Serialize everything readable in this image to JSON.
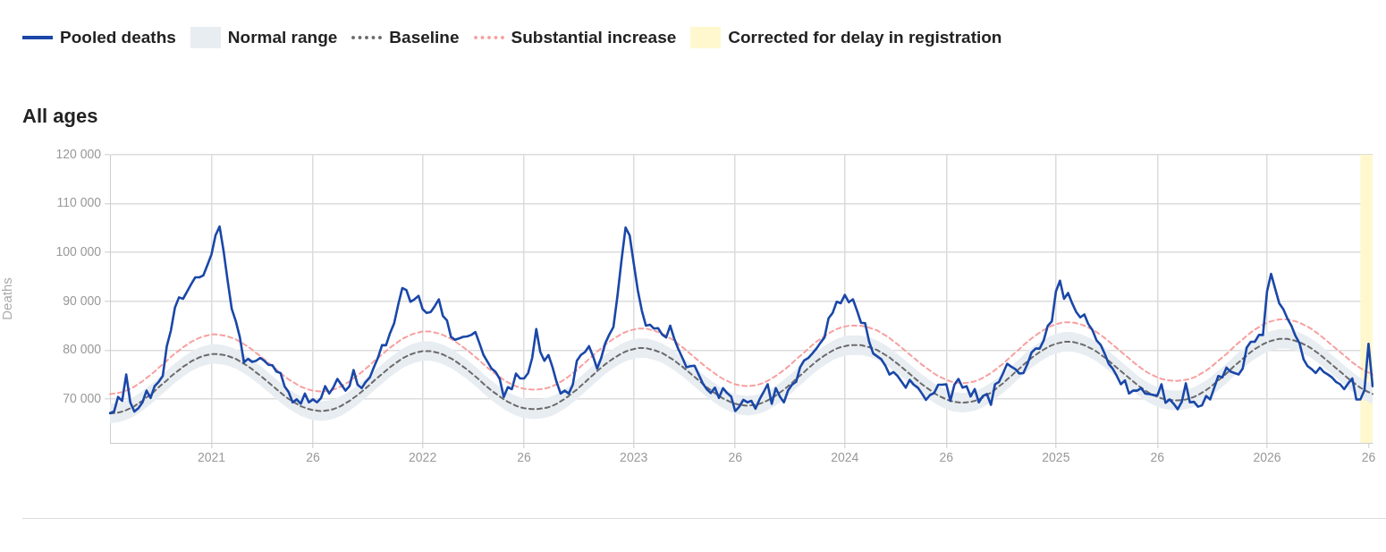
{
  "chart_data": {
    "type": "line",
    "title": "All ages",
    "ylabel": "Deaths",
    "legend": "top left",
    "grid": true,
    "categories": [
      null,
      null,
      null,
      null,
      null,
      null,
      null,
      null,
      null,
      null,
      null,
      null,
      null,
      null,
      null,
      null,
      null,
      null,
      null,
      null,
      null,
      null,
      null,
      null,
      null,
      "2021",
      null,
      null,
      null,
      null,
      null,
      null,
      null,
      null,
      null,
      null,
      null,
      null,
      null,
      null,
      null,
      null,
      null,
      null,
      null,
      null,
      null,
      null,
      null,
      null,
      "26",
      null,
      null,
      null,
      null,
      null,
      null,
      null,
      null,
      null,
      null,
      null,
      null,
      null,
      null,
      null,
      null,
      null,
      null,
      null,
      null,
      null,
      null,
      null,
      null,
      null,
      null,
      "2022",
      null,
      null,
      null,
      null,
      null,
      null,
      null,
      null,
      null,
      null,
      null,
      null,
      null,
      null,
      null,
      null,
      null,
      null,
      null,
      null,
      null,
      null,
      null,
      null,
      "26",
      null,
      null,
      null,
      null,
      null,
      null,
      null,
      null,
      null,
      null,
      null,
      null,
      null,
      null,
      null,
      null,
      null,
      null,
      null,
      null,
      null,
      null,
      null,
      null,
      null,
      null,
      "2023",
      null,
      null,
      null,
      null,
      null,
      null,
      null,
      null,
      null,
      null,
      null,
      null,
      null,
      null,
      null,
      null,
      null,
      null,
      null,
      null,
      null,
      null,
      null,
      null,
      "26",
      null,
      null,
      null,
      null,
      null,
      null,
      null,
      null,
      null,
      null,
      null,
      null,
      null,
      null,
      null,
      null,
      null,
      null,
      null,
      null,
      null,
      null,
      null,
      null,
      null,
      null,
      "2024",
      null,
      null,
      null,
      null,
      null,
      null,
      null,
      null,
      null,
      null,
      null,
      null,
      null,
      null,
      null,
      null,
      null,
      null,
      null,
      null,
      null,
      null,
      null,
      null,
      "26",
      null,
      null,
      null,
      null,
      null,
      null,
      null,
      null,
      null,
      null,
      null,
      null,
      null,
      null,
      null,
      null,
      null,
      null,
      null,
      null,
      null,
      null,
      null,
      null,
      null,
      null,
      "2025",
      null,
      null,
      null,
      null,
      null,
      null,
      null,
      null,
      null,
      null,
      null,
      null,
      null,
      null,
      null,
      null,
      null,
      null,
      null,
      null,
      null,
      null,
      null,
      null,
      "26",
      null,
      null,
      null,
      null,
      null,
      null,
      null,
      null,
      null,
      null,
      null,
      null,
      null,
      null,
      null,
      null,
      null,
      null,
      null,
      null,
      null,
      null,
      null,
      null,
      null,
      null,
      "2026",
      null,
      null,
      null,
      null,
      null,
      null,
      null,
      null,
      null,
      null,
      null,
      null,
      null,
      null,
      null,
      null,
      null,
      null,
      null,
      null,
      null,
      null,
      null,
      null,
      "26",
      null
    ],
    "ylim": [
      61000,
      120000
    ],
    "yticks": [
      {
        "value": 70000,
        "label": "70 000"
      },
      {
        "value": 80000,
        "label": "80 000"
      },
      {
        "value": 90000,
        "label": "90 000"
      },
      {
        "value": 100000,
        "label": "100 000"
      },
      {
        "value": 110000,
        "label": "110 000"
      },
      {
        "value": 120000,
        "label": "120 000"
      }
    ],
    "annotations": [
      "Normal range",
      "Corrected for delay in registration"
    ],
    "series": [
      {
        "name": "Pooled deaths",
        "type": "line",
        "color": "#1a47a8",
        "line_style": "solid",
        "values": [
          67100,
          67400,
          70400,
          69600,
          75000,
          69300,
          67400,
          68100,
          69300,
          71700,
          70200,
          72600,
          73500,
          74700,
          80800,
          84000,
          88700,
          90800,
          90500,
          92000,
          93500,
          94900,
          94900,
          95300,
          97400,
          99600,
          103500,
          105300,
          100200,
          94100,
          88400,
          85900,
          82600,
          77500,
          78200,
          77600,
          77800,
          78400,
          77800,
          77000,
          76900,
          75600,
          75300,
          72600,
          71400,
          69300,
          69900,
          69000,
          71100,
          69300,
          69900,
          69300,
          70200,
          72600,
          71100,
          72300,
          74100,
          72900,
          71700,
          72600,
          75900,
          72900,
          72200,
          73500,
          74400,
          76500,
          78400,
          81000,
          81000,
          83500,
          85500,
          89300,
          92700,
          92300,
          89900,
          90400,
          91100,
          88400,
          87600,
          87800,
          89000,
          90400,
          87000,
          86100,
          82700,
          82100,
          82400,
          82700,
          82800,
          83100,
          83700,
          81400,
          79000,
          77600,
          76200,
          75500,
          74100,
          70400,
          72400,
          72000,
          75200,
          74200,
          74200,
          75300,
          78400,
          84300,
          79600,
          77800,
          79000,
          76500,
          73500,
          71100,
          71700,
          71100,
          72900,
          77800,
          79000,
          79600,
          80800,
          78700,
          76200,
          78400,
          81400,
          83200,
          84700,
          91100,
          98400,
          105100,
          103500,
          97800,
          92300,
          88100,
          85000,
          85200,
          84400,
          84500,
          83200,
          82600,
          85000,
          82300,
          80200,
          78400,
          76500,
          76700,
          76800,
          75000,
          73200,
          72000,
          71200,
          72300,
          70200,
          72200,
          71200,
          70500,
          67500,
          68400,
          69800,
          69300,
          69600,
          68000,
          69900,
          71400,
          73000,
          69000,
          72200,
          70500,
          69300,
          71700,
          72900,
          73500,
          76500,
          77900,
          78400,
          79300,
          80300,
          81500,
          82600,
          86500,
          87600,
          89900,
          89600,
          91300,
          89800,
          90400,
          88100,
          85600,
          85500,
          81700,
          79300,
          78700,
          78100,
          76800,
          75000,
          75500,
          74700,
          73500,
          72300,
          73900,
          72900,
          72300,
          71100,
          69800,
          70800,
          71200,
          72900,
          72900,
          73000,
          69600,
          72900,
          74100,
          72300,
          72600,
          70500,
          72000,
          69300,
          70600,
          71000,
          68800,
          73000,
          73500,
          75300,
          77200,
          76600,
          76100,
          75200,
          75300,
          77200,
          79500,
          80300,
          80300,
          82000,
          85000,
          85900,
          92000,
          94200,
          90500,
          91700,
          89600,
          87800,
          86700,
          87300,
          85300,
          84100,
          82000,
          81100,
          79300,
          77200,
          76200,
          74700,
          73000,
          73800,
          71100,
          71700,
          71700,
          72200,
          71100,
          71000,
          70800,
          70700,
          73000,
          69200,
          69900,
          69000,
          67900,
          69400,
          73200,
          69300,
          69400,
          68400,
          68700,
          70600,
          69900,
          72300,
          74700,
          74400,
          76400,
          75600,
          75300,
          75000,
          76200,
          80500,
          81700,
          81700,
          83100,
          83100,
          92000,
          95600,
          92600,
          89600,
          88400,
          86500,
          85000,
          82900,
          81400,
          78100,
          76700,
          76100,
          75300,
          76400,
          75500,
          75000,
          74400,
          73500,
          73000,
          72000,
          73200,
          74200,
          69900,
          69900,
          71800,
          81300,
          72600
        ]
      },
      {
        "name": "Baseline",
        "type": "line",
        "color": "#6b6b6b",
        "line_style": "dashed",
        "lower": [
          65000,
          65100,
          65200,
          65400,
          65700,
          66100,
          66500,
          67100,
          67600,
          68300,
          68900,
          69600,
          70400,
          71100,
          71800,
          72600,
          73300,
          73900,
          74600,
          75100,
          75700,
          76100,
          76500,
          76800,
          77000,
          77200,
          77200,
          77100,
          77000,
          76800,
          76500,
          76200,
          75700,
          75200,
          74700,
          74100,
          73400,
          72800,
          72100,
          71400,
          70700,
          70000,
          69300,
          68600,
          68000,
          67500,
          67000,
          66500,
          66200,
          65900,
          65700,
          65600,
          65500,
          65600,
          65700,
          65900,
          66200,
          66600,
          67100,
          67600,
          68200,
          68800,
          69500,
          70200,
          70900,
          71700,
          72400,
          73100,
          73800,
          74500,
          75100,
          75700,
          76300,
          76700,
          77100,
          77400,
          77600,
          77800,
          77800,
          77800,
          77600,
          77400,
          77100,
          76700,
          76300,
          75800,
          75200,
          74600,
          74000,
          73300,
          72600,
          71900,
          71100,
          70400,
          69700,
          69100,
          68500,
          67900,
          67400,
          67000,
          66600,
          66300,
          66100,
          66000,
          65900,
          65900,
          66000,
          66100,
          66300,
          66600,
          67000,
          67500,
          68000,
          68600,
          69300,
          69900,
          70700,
          71400,
          72200,
          72900,
          73700,
          74400,
          75100,
          75700,
          76300,
          76800,
          77300,
          77700,
          78000,
          78200,
          78400,
          78400,
          78400,
          78200,
          78000,
          77700,
          77400,
          76900,
          76400,
          75900,
          75200,
          74600,
          73900,
          73200,
          72500,
          71800,
          71100,
          70400,
          69800,
          69200,
          68600,
          68100,
          67700,
          67300,
          67000,
          66800,
          66700,
          66600,
          66700,
          66800,
          67000,
          67300,
          67700,
          68200,
          68700,
          69300,
          69900,
          70600,
          71300,
          72100,
          72800,
          73500,
          74300,
          75000,
          75700,
          76300,
          76900,
          77400,
          77900,
          78300,
          78600,
          78800,
          79000,
          79000,
          79000,
          79000,
          78800,
          78600,
          78300,
          78000,
          77500,
          77000,
          76500,
          75800,
          75200,
          74500,
          73800,
          73100,
          72400,
          71700,
          71000,
          70400,
          69800,
          69200,
          68700,
          68300,
          67900,
          67600,
          67400,
          67300,
          67200,
          67300,
          67400,
          67600,
          67900,
          68300,
          68800,
          69300,
          69900,
          70600,
          71200,
          72000,
          72700,
          73500,
          74200,
          75000,
          75700,
          76400,
          77000,
          77600,
          78100,
          78600,
          79000,
          79300,
          79500,
          79700,
          79700,
          79700,
          79500,
          79300,
          79000,
          78600,
          78200,
          77700,
          77100,
          76500,
          75800,
          75100,
          74400,
          73700,
          73000,
          72300,
          71600,
          70900,
          70300,
          69700,
          69200,
          68800,
          68400,
          68100,
          67900,
          67800,
          67700,
          67700,
          67800,
          67900,
          68100,
          68400,
          68800,
          69300,
          69800,
          70400,
          71100,
          71800,
          72500,
          73200,
          74000,
          74800,
          75500,
          76200,
          76900,
          77600,
          78200,
          78700,
          79200,
          79600,
          79900,
          80100,
          80300,
          80300,
          80300,
          80100,
          79900,
          79600,
          79200,
          78800,
          78300,
          77700,
          77100,
          76400,
          75700,
          75000,
          74300,
          73600,
          72900,
          72200,
          71500,
          70900,
          70300,
          69800,
          69400,
          69000
        ],
        "upper": [
          69000,
          69100,
          69200,
          69400,
          69700,
          70100,
          70500,
          71100,
          71600,
          72300,
          72900,
          73600,
          74400,
          75100,
          75800,
          76600,
          77300,
          77900,
          78600,
          79100,
          79700,
          80100,
          80500,
          80800,
          81000,
          81200,
          81200,
          81100,
          81000,
          80800,
          80500,
          80200,
          79700,
          79200,
          78700,
          78100,
          77400,
          76800,
          76100,
          75400,
          74700,
          74000,
          73300,
          72600,
          72000,
          71500,
          71000,
          70500,
          70200,
          69900,
          69700,
          69600,
          69500,
          69600,
          69700,
          69900,
          70200,
          70600,
          71100,
          71600,
          72200,
          72800,
          73500,
          74200,
          74900,
          75700,
          76400,
          77100,
          77800,
          78500,
          79100,
          79700,
          80300,
          80700,
          81100,
          81400,
          81600,
          81800,
          81800,
          81800,
          81600,
          81400,
          81100,
          80700,
          80300,
          79800,
          79200,
          78600,
          78000,
          77300,
          76600,
          75900,
          75100,
          74400,
          73700,
          73100,
          72500,
          71900,
          71400,
          71000,
          70600,
          70300,
          70100,
          70000,
          69900,
          69900,
          70000,
          70100,
          70300,
          70600,
          71000,
          71500,
          72000,
          72600,
          73300,
          73900,
          74700,
          75400,
          76200,
          76900,
          77700,
          78400,
          79100,
          79700,
          80300,
          80800,
          81300,
          81700,
          82000,
          82200,
          82400,
          82400,
          82400,
          82200,
          82000,
          81700,
          81400,
          80900,
          80400,
          79900,
          79200,
          78600,
          77900,
          77200,
          76500,
          75800,
          75100,
          74400,
          73800,
          73200,
          72600,
          72100,
          71700,
          71300,
          71000,
          70800,
          70700,
          70600,
          70700,
          70800,
          71000,
          71300,
          71700,
          72200,
          72700,
          73300,
          73900,
          74600,
          75300,
          76100,
          76800,
          77500,
          78300,
          79000,
          79700,
          80300,
          80900,
          81400,
          81900,
          82300,
          82600,
          82800,
          83000,
          83000,
          83000,
          83000,
          82800,
          82600,
          82300,
          82000,
          81500,
          81000,
          80500,
          79800,
          79200,
          78500,
          77800,
          77100,
          76400,
          75700,
          75000,
          74400,
          73800,
          73200,
          72700,
          72300,
          71900,
          71600,
          71400,
          71300,
          71200,
          71300,
          71400,
          71600,
          71900,
          72300,
          72800,
          73300,
          73900,
          74600,
          75200,
          76000,
          76700,
          77500,
          78200,
          79000,
          79700,
          80400,
          81000,
          81600,
          82100,
          82600,
          83000,
          83300,
          83500,
          83700,
          83700,
          83700,
          83500,
          83300,
          83000,
          82600,
          82200,
          81700,
          81100,
          80500,
          79800,
          79100,
          78400,
          77700,
          77000,
          76300,
          75600,
          74900,
          74300,
          73700,
          73200,
          72800,
          72400,
          72100,
          71900,
          71800,
          71700,
          71700,
          71800,
          71900,
          72100,
          72400,
          72800,
          73300,
          73800,
          74400,
          75100,
          75800,
          76500,
          77200,
          78000,
          78800,
          79500,
          80200,
          80900,
          81600,
          82200,
          82700,
          83200,
          83600,
          83900,
          84100,
          84300,
          84300,
          84300,
          84100,
          83900,
          83600,
          83200,
          82800,
          82300,
          81700,
          81100,
          80400,
          79700,
          79000,
          78300,
          77600,
          76900,
          76200,
          75500,
          74900,
          74300,
          73800,
          73400,
          73000
        ],
        "values": [
          67000,
          67100,
          67200,
          67400,
          67700,
          68100,
          68500,
          69100,
          69600,
          70300,
          70900,
          71600,
          72400,
          73100,
          73800,
          74600,
          75300,
          75900,
          76600,
          77100,
          77700,
          78100,
          78500,
          78800,
          79000,
          79200,
          79200,
          79100,
          79000,
          78800,
          78500,
          78200,
          77700,
          77200,
          76700,
          76100,
          75400,
          74800,
          74100,
          73400,
          72700,
          72000,
          71300,
          70600,
          70000,
          69500,
          69000,
          68500,
          68200,
          67900,
          67700,
          67600,
          67500,
          67600,
          67700,
          67900,
          68200,
          68600,
          69100,
          69600,
          70200,
          70800,
          71500,
          72200,
          72900,
          73700,
          74400,
          75100,
          75800,
          76500,
          77100,
          77700,
          78300,
          78700,
          79100,
          79400,
          79600,
          79800,
          79800,
          79800,
          79600,
          79400,
          79100,
          78700,
          78300,
          77800,
          77200,
          76600,
          76000,
          75300,
          74600,
          73900,
          73100,
          72400,
          71700,
          71100,
          70500,
          69900,
          69400,
          69000,
          68600,
          68300,
          68100,
          68000,
          67900,
          67900,
          68000,
          68100,
          68300,
          68600,
          69000,
          69500,
          70000,
          70600,
          71300,
          71900,
          72700,
          73400,
          74200,
          74900,
          75700,
          76400,
          77100,
          77700,
          78300,
          78800,
          79300,
          79700,
          80000,
          80200,
          80400,
          80400,
          80400,
          80200,
          80000,
          79700,
          79400,
          78900,
          78400,
          77900,
          77200,
          76600,
          75900,
          75200,
          74500,
          73800,
          73100,
          72400,
          71800,
          71200,
          70600,
          70100,
          69700,
          69300,
          69000,
          68800,
          68700,
          68600,
          68700,
          68800,
          69000,
          69300,
          69700,
          70200,
          70700,
          71300,
          71900,
          72600,
          73300,
          74100,
          74800,
          75500,
          76300,
          77000,
          77700,
          78300,
          78900,
          79400,
          79900,
          80300,
          80600,
          80800,
          81000,
          81000,
          81000,
          81000,
          80800,
          80600,
          80300,
          80000,
          79500,
          79000,
          78500,
          77800,
          77200,
          76500,
          75800,
          75100,
          74400,
          73700,
          73000,
          72400,
          71800,
          71200,
          70700,
          70300,
          69900,
          69600,
          69400,
          69300,
          69200,
          69300,
          69400,
          69600,
          69900,
          70300,
          70800,
          71300,
          71900,
          72600,
          73200,
          74000,
          74700,
          75500,
          76200,
          77000,
          77700,
          78400,
          79000,
          79600,
          80100,
          80600,
          81000,
          81300,
          81500,
          81700,
          81700,
          81700,
          81500,
          81300,
          81000,
          80600,
          80200,
          79700,
          79100,
          78500,
          77800,
          77100,
          76400,
          75700,
          75000,
          74300,
          73600,
          72900,
          72300,
          71700,
          71200,
          70800,
          70400,
          70100,
          69900,
          69800,
          69700,
          69700,
          69800,
          69900,
          70100,
          70400,
          70800,
          71300,
          71800,
          72400,
          73100,
          73800,
          74500,
          75200,
          76000,
          76800,
          77500,
          78200,
          78900,
          79600,
          80200,
          80700,
          81200,
          81600,
          81900,
          82100,
          82300,
          82300,
          82300,
          82100,
          81900,
          81600,
          81200,
          80800,
          80300,
          79700,
          79100,
          78400,
          77700,
          77000,
          76300,
          75600,
          74900,
          74200,
          73500,
          72900,
          72300,
          71800,
          71400,
          71000
        ]
      },
      {
        "name": "Substantial increase",
        "type": "line",
        "color": "#f7a0a0",
        "line_style": "dashed",
        "values": [
          71000,
          71100,
          71200,
          71400,
          71700,
          72100,
          72500,
          73100,
          73600,
          74300,
          74900,
          75600,
          76400,
          77100,
          77800,
          78600,
          79300,
          79900,
          80600,
          81100,
          81700,
          82100,
          82500,
          82800,
          83000,
          83200,
          83200,
          83100,
          83000,
          82800,
          82500,
          82200,
          81700,
          81200,
          80700,
          80100,
          79400,
          78800,
          78100,
          77400,
          76700,
          76000,
          75300,
          74600,
          74000,
          73500,
          73000,
          72500,
          72200,
          71900,
          71700,
          71600,
          71500,
          71600,
          71700,
          71900,
          72200,
          72600,
          73100,
          73600,
          74200,
          74800,
          75500,
          76200,
          76900,
          77700,
          78400,
          79100,
          79800,
          80500,
          81100,
          81700,
          82300,
          82700,
          83100,
          83400,
          83600,
          83800,
          83800,
          83800,
          83600,
          83400,
          83100,
          82700,
          82300,
          81800,
          81200,
          80600,
          80000,
          79300,
          78600,
          77900,
          77100,
          76400,
          75700,
          75100,
          74500,
          73900,
          73400,
          73000,
          72600,
          72300,
          72100,
          72000,
          71900,
          71900,
          72000,
          72100,
          72300,
          72600,
          73000,
          73500,
          74000,
          74600,
          75300,
          75900,
          76700,
          77400,
          78200,
          78900,
          79700,
          80400,
          81100,
          81700,
          82300,
          82800,
          83300,
          83700,
          84000,
          84200,
          84400,
          84400,
          84400,
          84200,
          84000,
          83700,
          83400,
          82900,
          82400,
          81900,
          81200,
          80600,
          79900,
          79200,
          78500,
          77800,
          77100,
          76400,
          75800,
          75200,
          74600,
          74100,
          73700,
          73300,
          73000,
          72800,
          72700,
          72600,
          72700,
          72800,
          73000,
          73300,
          73700,
          74200,
          74700,
          75300,
          75900,
          76600,
          77300,
          78100,
          78800,
          79500,
          80300,
          81000,
          81700,
          82300,
          82900,
          83400,
          83900,
          84300,
          84600,
          84800,
          85000,
          85000,
          85000,
          85000,
          84800,
          84600,
          84300,
          84000,
          83500,
          83000,
          82500,
          81800,
          81200,
          80500,
          79800,
          79100,
          78400,
          77700,
          77000,
          76400,
          75800,
          75200,
          74700,
          74300,
          73900,
          73600,
          73400,
          73300,
          73200,
          73300,
          73400,
          73600,
          73900,
          74300,
          74800,
          75300,
          75900,
          76600,
          77200,
          78000,
          78700,
          79500,
          80200,
          81000,
          81700,
          82400,
          83000,
          83600,
          84100,
          84600,
          85000,
          85300,
          85500,
          85700,
          85700,
          85700,
          85500,
          85300,
          85000,
          84600,
          84200,
          83700,
          83100,
          82500,
          81800,
          81100,
          80400,
          79700,
          79000,
          78300,
          77600,
          76900,
          76300,
          75700,
          75200,
          74800,
          74400,
          74100,
          73900,
          73800,
          73700,
          73700,
          73800,
          73900,
          74100,
          74400,
          74800,
          75300,
          75800,
          76400,
          77100,
          77800,
          78500,
          79200,
          80000,
          80800,
          81500,
          82200,
          82900,
          83600,
          84200,
          84700,
          85200,
          85600,
          85900,
          86100,
          86300,
          86300,
          86300,
          86100,
          85900,
          85600,
          85200,
          84800,
          84300,
          83700,
          83100,
          82400,
          81700,
          81000,
          80300,
          79600,
          78900,
          78200,
          77500,
          76900,
          76300,
          75800,
          75400,
          75000
        ]
      }
    ]
  }
}
